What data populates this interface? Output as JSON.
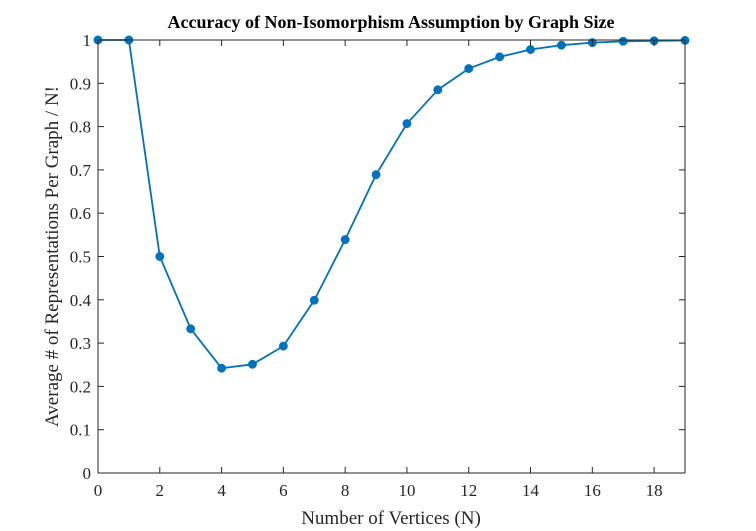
{
  "chart_data": {
    "type": "line",
    "title": "Accuracy of Non-Isomorphism Assumption by Graph Size",
    "xlabel": "Number of Vertices (N)",
    "ylabel": "Average # of Representations Per Graph / N!",
    "xlim": [
      0,
      19
    ],
    "ylim": [
      0,
      1
    ],
    "xticks": [
      0,
      2,
      4,
      6,
      8,
      10,
      12,
      14,
      16,
      18
    ],
    "yticks": [
      0,
      0.1,
      0.2,
      0.3,
      0.4,
      0.5,
      0.6,
      0.7,
      0.8,
      0.9,
      1
    ],
    "grid": false,
    "series": [
      {
        "x": [
          0,
          1,
          2,
          3,
          4,
          5,
          6,
          7,
          8,
          9,
          10,
          11,
          12,
          13,
          14,
          15,
          16,
          17,
          18,
          19
        ],
        "y": [
          1,
          1,
          0.5,
          0.333,
          0.242,
          0.251,
          0.293,
          0.399,
          0.539,
          0.689,
          0.807,
          0.885,
          0.934,
          0.961,
          0.978,
          0.988,
          0.994,
          0.997,
          0.998,
          0.999
        ],
        "color": "#0072bd",
        "marker": "circle"
      }
    ]
  }
}
